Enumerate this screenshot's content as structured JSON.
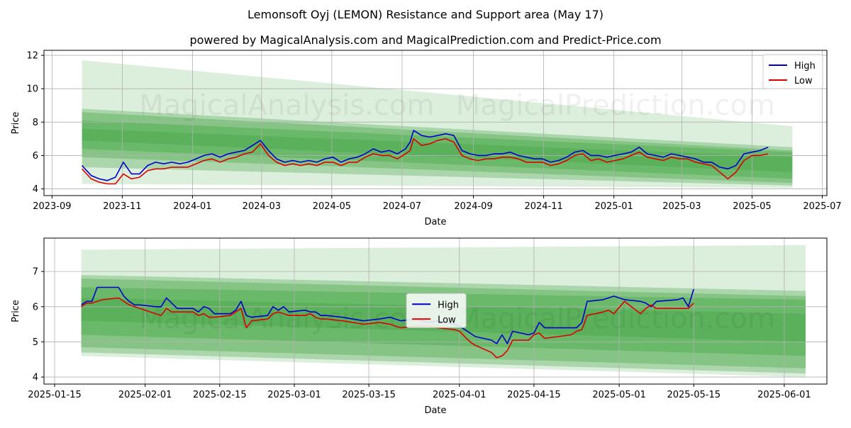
{
  "header": {
    "title": "Lemonsoft Oyj (LEMON) Resistance and Support area (May 17)",
    "subtitle": "powered by MagicalAnalysis.com and MagicalPrediction.com and Predict-Price.com"
  },
  "watermark": {
    "left": "MagicalAnalysis.com",
    "right": "MagicalPrediction.com"
  },
  "colors": {
    "high": "#0000cc",
    "low": "#dd0000",
    "band": "#2e9a2e",
    "grid": "#b0b0b0"
  },
  "chart_data": [
    {
      "type": "line",
      "xlabel": "Date",
      "ylabel": "Price",
      "x_ticks": [
        "2023-09",
        "2023-11",
        "2024-01",
        "2024-03",
        "2024-05",
        "2024-07",
        "2024-09",
        "2024-11",
        "2025-01",
        "2025-03",
        "2025-05",
        "2025-07"
      ],
      "y_ticks": [
        4,
        6,
        8,
        10,
        12
      ],
      "xlim": [
        "2023-08-25",
        "2025-07-05"
      ],
      "ylim": [
        3.6,
        12.3
      ],
      "grid": true,
      "legend": {
        "position": "top-right",
        "entries": [
          "High",
          "Low"
        ]
      },
      "bands": [
        {
          "start": {
            "date": "2023-09-27",
            "low": 4.3,
            "high": 11.7
          },
          "end": {
            "date": "2025-06-05",
            "low": 4.05,
            "high": 7.75
          },
          "opacity": 0.17
        },
        {
          "start": {
            "date": "2023-09-27",
            "low": 5.3,
            "high": 8.8
          },
          "end": {
            "date": "2025-06-05",
            "low": 4.2,
            "high": 6.5
          },
          "opacity": 0.28
        },
        {
          "start": {
            "date": "2023-09-27",
            "low": 5.9,
            "high": 8.6
          },
          "end": {
            "date": "2025-06-05",
            "low": 4.35,
            "high": 6.3
          },
          "opacity": 0.3
        },
        {
          "start": {
            "date": "2023-09-27",
            "low": 6.4,
            "high": 8.1
          },
          "end": {
            "date": "2025-06-05",
            "low": 4.6,
            "high": 6.2
          },
          "opacity": 0.3
        },
        {
          "start": {
            "date": "2023-09-27",
            "low": 6.9,
            "high": 7.6
          },
          "end": {
            "date": "2025-06-05",
            "low": 5.0,
            "high": 5.9
          },
          "opacity": 0.25
        }
      ],
      "series": [
        {
          "name": "High",
          "x": [
            "2023-09-27",
            "2023-10-05",
            "2023-10-12",
            "2023-10-19",
            "2023-10-26",
            "2023-11-02",
            "2023-11-09",
            "2023-11-16",
            "2023-11-23",
            "2023-11-30",
            "2023-12-07",
            "2023-12-14",
            "2023-12-21",
            "2023-12-28",
            "2024-01-04",
            "2024-01-11",
            "2024-01-18",
            "2024-01-25",
            "2024-02-01",
            "2024-02-08",
            "2024-02-15",
            "2024-02-22",
            "2024-02-29",
            "2024-03-07",
            "2024-03-14",
            "2024-03-21",
            "2024-03-28",
            "2024-04-04",
            "2024-04-11",
            "2024-04-18",
            "2024-04-25",
            "2024-05-02",
            "2024-05-09",
            "2024-05-16",
            "2024-05-23",
            "2024-05-30",
            "2024-06-06",
            "2024-06-13",
            "2024-06-20",
            "2024-06-27",
            "2024-07-04",
            "2024-07-08",
            "2024-07-11",
            "2024-07-18",
            "2024-07-25",
            "2024-08-01",
            "2024-08-08",
            "2024-08-15",
            "2024-08-22",
            "2024-08-29",
            "2024-09-05",
            "2024-09-12",
            "2024-09-19",
            "2024-09-26",
            "2024-10-03",
            "2024-10-10",
            "2024-10-17",
            "2024-10-24",
            "2024-10-31",
            "2024-11-07",
            "2024-11-14",
            "2024-11-21",
            "2024-11-28",
            "2024-12-05",
            "2024-12-12",
            "2024-12-19",
            "2024-12-26",
            "2025-01-02",
            "2025-01-09",
            "2025-01-16",
            "2025-01-23",
            "2025-01-30",
            "2025-02-06",
            "2025-02-13",
            "2025-02-20",
            "2025-02-27",
            "2025-03-06",
            "2025-03-13",
            "2025-03-20",
            "2025-03-27",
            "2025-04-03",
            "2025-04-10",
            "2025-04-17",
            "2025-04-24",
            "2025-05-01",
            "2025-05-08",
            "2025-05-15"
          ],
          "values": [
            5.4,
            4.8,
            4.6,
            4.5,
            4.7,
            5.6,
            4.9,
            4.9,
            5.4,
            5.6,
            5.5,
            5.6,
            5.5,
            5.6,
            5.8,
            6.0,
            6.1,
            5.9,
            6.1,
            6.2,
            6.3,
            6.6,
            6.9,
            6.3,
            5.8,
            5.6,
            5.7,
            5.6,
            5.7,
            5.6,
            5.8,
            5.9,
            5.6,
            5.8,
            5.9,
            6.1,
            6.4,
            6.2,
            6.3,
            6.1,
            6.4,
            6.8,
            7.5,
            7.2,
            7.1,
            7.2,
            7.3,
            7.2,
            6.3,
            6.1,
            6.0,
            6.0,
            6.1,
            6.1,
            6.2,
            6.0,
            5.9,
            5.8,
            5.8,
            5.6,
            5.7,
            5.9,
            6.2,
            6.3,
            6.0,
            6.0,
            5.9,
            6.0,
            6.1,
            6.2,
            6.5,
            6.1,
            6.0,
            5.9,
            6.1,
            6.0,
            5.9,
            5.8,
            5.6,
            5.6,
            5.3,
            5.2,
            5.4,
            6.1,
            6.2,
            6.3,
            6.5
          ]
        },
        {
          "name": "Low",
          "x": [
            "2023-09-27",
            "2023-10-05",
            "2023-10-12",
            "2023-10-19",
            "2023-10-26",
            "2023-11-02",
            "2023-11-09",
            "2023-11-16",
            "2023-11-23",
            "2023-11-30",
            "2023-12-07",
            "2023-12-14",
            "2023-12-21",
            "2023-12-28",
            "2024-01-04",
            "2024-01-11",
            "2024-01-18",
            "2024-01-25",
            "2024-02-01",
            "2024-02-08",
            "2024-02-15",
            "2024-02-22",
            "2024-02-29",
            "2024-03-07",
            "2024-03-14",
            "2024-03-21",
            "2024-03-28",
            "2024-04-04",
            "2024-04-11",
            "2024-04-18",
            "2024-04-25",
            "2024-05-02",
            "2024-05-09",
            "2024-05-16",
            "2024-05-23",
            "2024-05-30",
            "2024-06-06",
            "2024-06-13",
            "2024-06-20",
            "2024-06-27",
            "2024-07-04",
            "2024-07-08",
            "2024-07-11",
            "2024-07-18",
            "2024-07-25",
            "2024-08-01",
            "2024-08-08",
            "2024-08-15",
            "2024-08-22",
            "2024-08-29",
            "2024-09-05",
            "2024-09-12",
            "2024-09-19",
            "2024-09-26",
            "2024-10-03",
            "2024-10-10",
            "2024-10-17",
            "2024-10-24",
            "2024-10-31",
            "2024-11-07",
            "2024-11-14",
            "2024-11-21",
            "2024-11-28",
            "2024-12-05",
            "2024-12-12",
            "2024-12-19",
            "2024-12-26",
            "2025-01-02",
            "2025-01-09",
            "2025-01-16",
            "2025-01-23",
            "2025-01-30",
            "2025-02-06",
            "2025-02-13",
            "2025-02-20",
            "2025-02-27",
            "2025-03-06",
            "2025-03-13",
            "2025-03-20",
            "2025-03-27",
            "2025-04-03",
            "2025-04-10",
            "2025-04-17",
            "2025-04-24",
            "2025-05-01",
            "2025-05-08",
            "2025-05-15"
          ],
          "values": [
            5.2,
            4.6,
            4.4,
            4.3,
            4.3,
            4.9,
            4.6,
            4.7,
            5.1,
            5.2,
            5.2,
            5.3,
            5.3,
            5.3,
            5.5,
            5.7,
            5.8,
            5.6,
            5.8,
            5.9,
            6.1,
            6.2,
            6.7,
            6.0,
            5.6,
            5.4,
            5.5,
            5.4,
            5.5,
            5.4,
            5.6,
            5.6,
            5.4,
            5.6,
            5.6,
            5.9,
            6.1,
            6.0,
            6.0,
            5.8,
            6.1,
            6.3,
            7.0,
            6.6,
            6.7,
            6.9,
            7.0,
            6.8,
            6.0,
            5.8,
            5.7,
            5.8,
            5.8,
            5.9,
            5.9,
            5.8,
            5.6,
            5.6,
            5.6,
            5.4,
            5.5,
            5.7,
            6.0,
            6.1,
            5.7,
            5.8,
            5.6,
            5.7,
            5.8,
            6.0,
            6.2,
            5.9,
            5.8,
            5.7,
            5.9,
            5.8,
            5.8,
            5.6,
            5.5,
            5.4,
            5.0,
            4.6,
            5.0,
            5.7,
            6.0,
            6.0,
            6.1
          ]
        }
      ]
    },
    {
      "type": "line",
      "xlabel": "Date",
      "ylabel": "Price",
      "x_ticks": [
        "2025-01-15",
        "2025-02-01",
        "2025-02-15",
        "2025-03-01",
        "2025-03-15",
        "2025-04-01",
        "2025-04-15",
        "2025-05-01",
        "2025-05-15",
        "2025-06-01"
      ],
      "y_ticks": [
        4,
        5,
        6,
        7
      ],
      "xlim": [
        "2025-01-13",
        "2025-06-09"
      ],
      "ylim": [
        3.8,
        7.95
      ],
      "grid": true,
      "legend": {
        "position": "center",
        "entries": [
          "High",
          "Low"
        ]
      },
      "bands": [
        {
          "start": {
            "date": "2025-01-20",
            "low": 4.6,
            "high": 7.62
          },
          "end": {
            "date": "2025-06-05",
            "low": 4.0,
            "high": 7.75
          },
          "opacity": 0.17
        },
        {
          "start": {
            "date": "2025-01-20",
            "low": 4.7,
            "high": 6.9
          },
          "end": {
            "date": "2025-06-05",
            "low": 4.1,
            "high": 6.45
          },
          "opacity": 0.28
        },
        {
          "start": {
            "date": "2025-01-20",
            "low": 4.85,
            "high": 6.8
          },
          "end": {
            "date": "2025-06-05",
            "low": 4.25,
            "high": 6.3
          },
          "opacity": 0.3
        },
        {
          "start": {
            "date": "2025-01-20",
            "low": 5.2,
            "high": 6.55
          },
          "end": {
            "date": "2025-06-05",
            "low": 4.6,
            "high": 6.2
          },
          "opacity": 0.3
        },
        {
          "start": {
            "date": "2025-01-20",
            "low": 5.6,
            "high": 6.25
          },
          "end": {
            "date": "2025-06-05",
            "low": 5.0,
            "high": 5.8
          },
          "opacity": 0.25
        }
      ],
      "series": [
        {
          "name": "High",
          "x": [
            "2025-01-20",
            "2025-01-21",
            "2025-01-22",
            "2025-01-23",
            "2025-01-24",
            "2025-01-27",
            "2025-01-28",
            "2025-01-29",
            "2025-01-30",
            "2025-01-31",
            "2025-02-03",
            "2025-02-04",
            "2025-02-05",
            "2025-02-06",
            "2025-02-07",
            "2025-02-10",
            "2025-02-11",
            "2025-02-12",
            "2025-02-13",
            "2025-02-14",
            "2025-02-17",
            "2025-02-18",
            "2025-02-19",
            "2025-02-20",
            "2025-02-21",
            "2025-02-24",
            "2025-02-25",
            "2025-02-26",
            "2025-02-27",
            "2025-02-28",
            "2025-03-03",
            "2025-03-04",
            "2025-03-05",
            "2025-03-06",
            "2025-03-07",
            "2025-03-10",
            "2025-03-12",
            "2025-03-14",
            "2025-03-17",
            "2025-03-19",
            "2025-03-21",
            "2025-03-24",
            "2025-03-26",
            "2025-03-28",
            "2025-03-31",
            "2025-04-01",
            "2025-04-03",
            "2025-04-04",
            "2025-04-07",
            "2025-04-08",
            "2025-04-09",
            "2025-04-10",
            "2025-04-11",
            "2025-04-14",
            "2025-04-15",
            "2025-04-16",
            "2025-04-17",
            "2025-04-22",
            "2025-04-23",
            "2025-04-24",
            "2025-04-25",
            "2025-04-28",
            "2025-04-29",
            "2025-04-30",
            "2025-05-02",
            "2025-05-05",
            "2025-05-06",
            "2025-05-07",
            "2025-05-08",
            "2025-05-12",
            "2025-05-13",
            "2025-05-14",
            "2025-05-15"
          ],
          "values": [
            6.05,
            6.15,
            6.15,
            6.55,
            6.55,
            6.55,
            6.3,
            6.15,
            6.05,
            6.05,
            6.0,
            6.0,
            6.25,
            6.1,
            5.95,
            5.95,
            5.85,
            6.0,
            5.95,
            5.8,
            5.8,
            5.9,
            6.15,
            5.75,
            5.7,
            5.75,
            6.0,
            5.9,
            6.0,
            5.85,
            5.9,
            5.85,
            5.85,
            5.75,
            5.75,
            5.7,
            5.65,
            5.6,
            5.65,
            5.7,
            5.6,
            5.65,
            5.55,
            5.6,
            5.5,
            5.45,
            5.25,
            5.15,
            5.05,
            4.95,
            5.2,
            4.95,
            5.3,
            5.2,
            5.25,
            5.55,
            5.4,
            5.4,
            5.4,
            5.55,
            6.15,
            6.2,
            6.25,
            6.3,
            6.2,
            6.15,
            6.1,
            6.0,
            6.15,
            6.2,
            6.25,
            6.0,
            6.5
          ]
        },
        {
          "name": "Low",
          "x": [
            "2025-01-20",
            "2025-01-21",
            "2025-01-22",
            "2025-01-23",
            "2025-01-24",
            "2025-01-27",
            "2025-01-28",
            "2025-01-29",
            "2025-01-30",
            "2025-01-31",
            "2025-02-03",
            "2025-02-04",
            "2025-02-05",
            "2025-02-06",
            "2025-02-07",
            "2025-02-10",
            "2025-02-11",
            "2025-02-12",
            "2025-02-13",
            "2025-02-14",
            "2025-02-17",
            "2025-02-18",
            "2025-02-19",
            "2025-02-20",
            "2025-02-21",
            "2025-02-24",
            "2025-02-25",
            "2025-02-26",
            "2025-02-27",
            "2025-02-28",
            "2025-03-03",
            "2025-03-04",
            "2025-03-05",
            "2025-03-06",
            "2025-03-07",
            "2025-03-10",
            "2025-03-12",
            "2025-03-14",
            "2025-03-17",
            "2025-03-19",
            "2025-03-21",
            "2025-03-24",
            "2025-03-26",
            "2025-03-28",
            "2025-03-31",
            "2025-04-01",
            "2025-04-03",
            "2025-04-04",
            "2025-04-07",
            "2025-04-08",
            "2025-04-09",
            "2025-04-10",
            "2025-04-11",
            "2025-04-14",
            "2025-04-15",
            "2025-04-16",
            "2025-04-17",
            "2025-04-22",
            "2025-04-23",
            "2025-04-24",
            "2025-04-25",
            "2025-04-28",
            "2025-04-29",
            "2025-04-30",
            "2025-05-02",
            "2025-05-05",
            "2025-05-06",
            "2025-05-07",
            "2025-05-08",
            "2025-05-12",
            "2025-05-13",
            "2025-05-14",
            "2025-05-15"
          ],
          "values": [
            6.0,
            6.1,
            6.1,
            6.15,
            6.2,
            6.25,
            6.15,
            6.05,
            6.0,
            5.95,
            5.8,
            5.75,
            5.95,
            5.85,
            5.85,
            5.85,
            5.75,
            5.8,
            5.7,
            5.7,
            5.75,
            5.85,
            5.95,
            5.4,
            5.6,
            5.65,
            5.8,
            5.85,
            5.8,
            5.75,
            5.75,
            5.8,
            5.7,
            5.65,
            5.65,
            5.6,
            5.55,
            5.5,
            5.55,
            5.5,
            5.4,
            5.45,
            5.45,
            5.4,
            5.35,
            5.3,
            5.0,
            4.9,
            4.7,
            4.55,
            4.6,
            4.75,
            5.05,
            5.05,
            5.2,
            5.25,
            5.1,
            5.2,
            5.3,
            5.35,
            5.75,
            5.85,
            5.9,
            5.8,
            6.15,
            5.8,
            5.95,
            6.05,
            5.95,
            5.95,
            5.95,
            5.95,
            6.1
          ]
        }
      ]
    }
  ]
}
